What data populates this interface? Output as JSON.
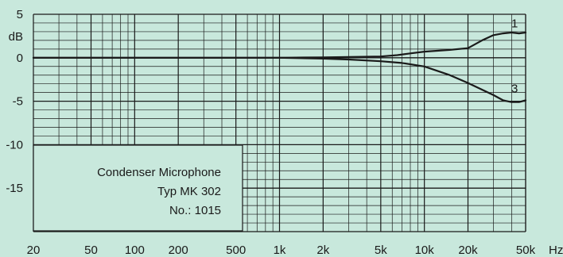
{
  "chart_data": {
    "type": "line",
    "title": "",
    "xlabel": "Hz",
    "ylabel": "dB",
    "x_scale": "log",
    "xlim": [
      20,
      50000
    ],
    "ylim": [
      -20,
      5
    ],
    "x_ticks": [
      20,
      50,
      100,
      200,
      500,
      1000,
      2000,
      5000,
      10000,
      20000,
      50000
    ],
    "x_tick_labels": [
      "20",
      "50",
      "100",
      "200",
      "500",
      "1k",
      "2k",
      "5k",
      "10k",
      "20k",
      "50k"
    ],
    "y_ticks": [
      5,
      0,
      -5,
      -10,
      -15
    ],
    "y_tick_labels": [
      "5",
      "0",
      "-5",
      "-10",
      "-15"
    ],
    "grid": true,
    "series": [
      {
        "name": "1",
        "x": [
          20,
          100,
          1000,
          2000,
          5000,
          6500,
          8000,
          10000,
          15000,
          20000,
          25000,
          30000,
          35000,
          40000,
          45000,
          50000
        ],
        "y": [
          0,
          0,
          0,
          0.05,
          0.15,
          0.3,
          0.5,
          0.7,
          0.9,
          1.1,
          2.0,
          2.6,
          2.8,
          2.9,
          2.8,
          2.9
        ]
      },
      {
        "name": "3",
        "x": [
          20,
          100,
          1000,
          2000,
          3000,
          5000,
          7000,
          10000,
          15000,
          20000,
          30000,
          35000,
          40000,
          45000,
          50000
        ],
        "y": [
          0,
          0,
          0,
          -0.1,
          -0.2,
          -0.4,
          -0.6,
          -1.0,
          -2.0,
          -2.9,
          -4.3,
          -4.9,
          -5.1,
          -5.1,
          -4.9
        ]
      }
    ]
  },
  "info_box": {
    "line1": "Condenser Microphone",
    "line2": "Typ MK 302",
    "line3": "No.: 1015"
  },
  "colors": {
    "background": "#c8e8dc",
    "grid": "#1a1a1a",
    "curve": "#1a1a1a",
    "info_box": "#c8e8dc"
  }
}
